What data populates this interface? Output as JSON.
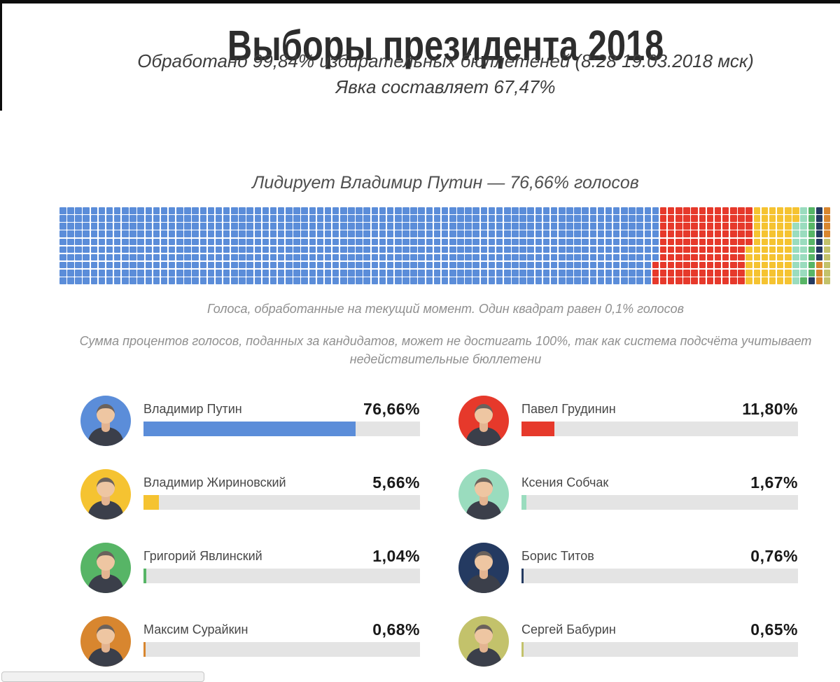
{
  "header": {
    "title": "Выборы президента 2018",
    "processed_line": "Обработано 99,84% избирательных бюллетеней (8:28 19.03.2018 мск)",
    "turnout_line": "Явка составляет 67,47%"
  },
  "lead": "Лидирует Владимир Путин — 76,66% голосов",
  "notes": {
    "waffle_caption": "Голоса, обработанные на текущий момент. Один квадрат равен 0,1% голосов",
    "waffle_note": "Сумма процентов голосов, поданных за кандидатов, может не достигать 100%, так как система подсчёта учитывает недействительные бюллетени"
  },
  "chart_data": {
    "type": "waffle",
    "title": "Лидирует Владимир Путин — 76,66% голосов",
    "rows": 10,
    "columns": 99,
    "square_value_percent": 0.1,
    "fill_order": "column-major-top-to-bottom",
    "bar_track_color": "#e4e4e4",
    "candidates": [
      {
        "rank": 1,
        "name": "Владимир Путин",
        "percent": 76.66,
        "percent_label": "76,66%",
        "squares": 767,
        "color": "#5b8dd9"
      },
      {
        "rank": 2,
        "name": "Павел Грудинин",
        "percent": 11.8,
        "percent_label": "11,80%",
        "squares": 118,
        "color": "#e6392b"
      },
      {
        "rank": 3,
        "name": "Владимир Жириновский",
        "percent": 5.66,
        "percent_label": "5,66%",
        "squares": 57,
        "color": "#f5c331"
      },
      {
        "rank": 4,
        "name": "Ксения Собчак",
        "percent": 1.67,
        "percent_label": "1,67%",
        "squares": 17,
        "color": "#9adcbe"
      },
      {
        "rank": 5,
        "name": "Григорий Явлинский",
        "percent": 1.04,
        "percent_label": "1,04%",
        "squares": 10,
        "color": "#57b566"
      },
      {
        "rank": 6,
        "name": "Борис Титов",
        "percent": 0.76,
        "percent_label": "0,76%",
        "squares": 8,
        "color": "#243a61"
      },
      {
        "rank": 7,
        "name": "Максим Сурайкин",
        "percent": 0.68,
        "percent_label": "0,68%",
        "squares": 7,
        "color": "#d8862f"
      },
      {
        "rank": 8,
        "name": "Сергей Бабурин",
        "percent": 0.65,
        "percent_label": "0,65%",
        "squares": 6,
        "color": "#c3c26b"
      }
    ]
  }
}
